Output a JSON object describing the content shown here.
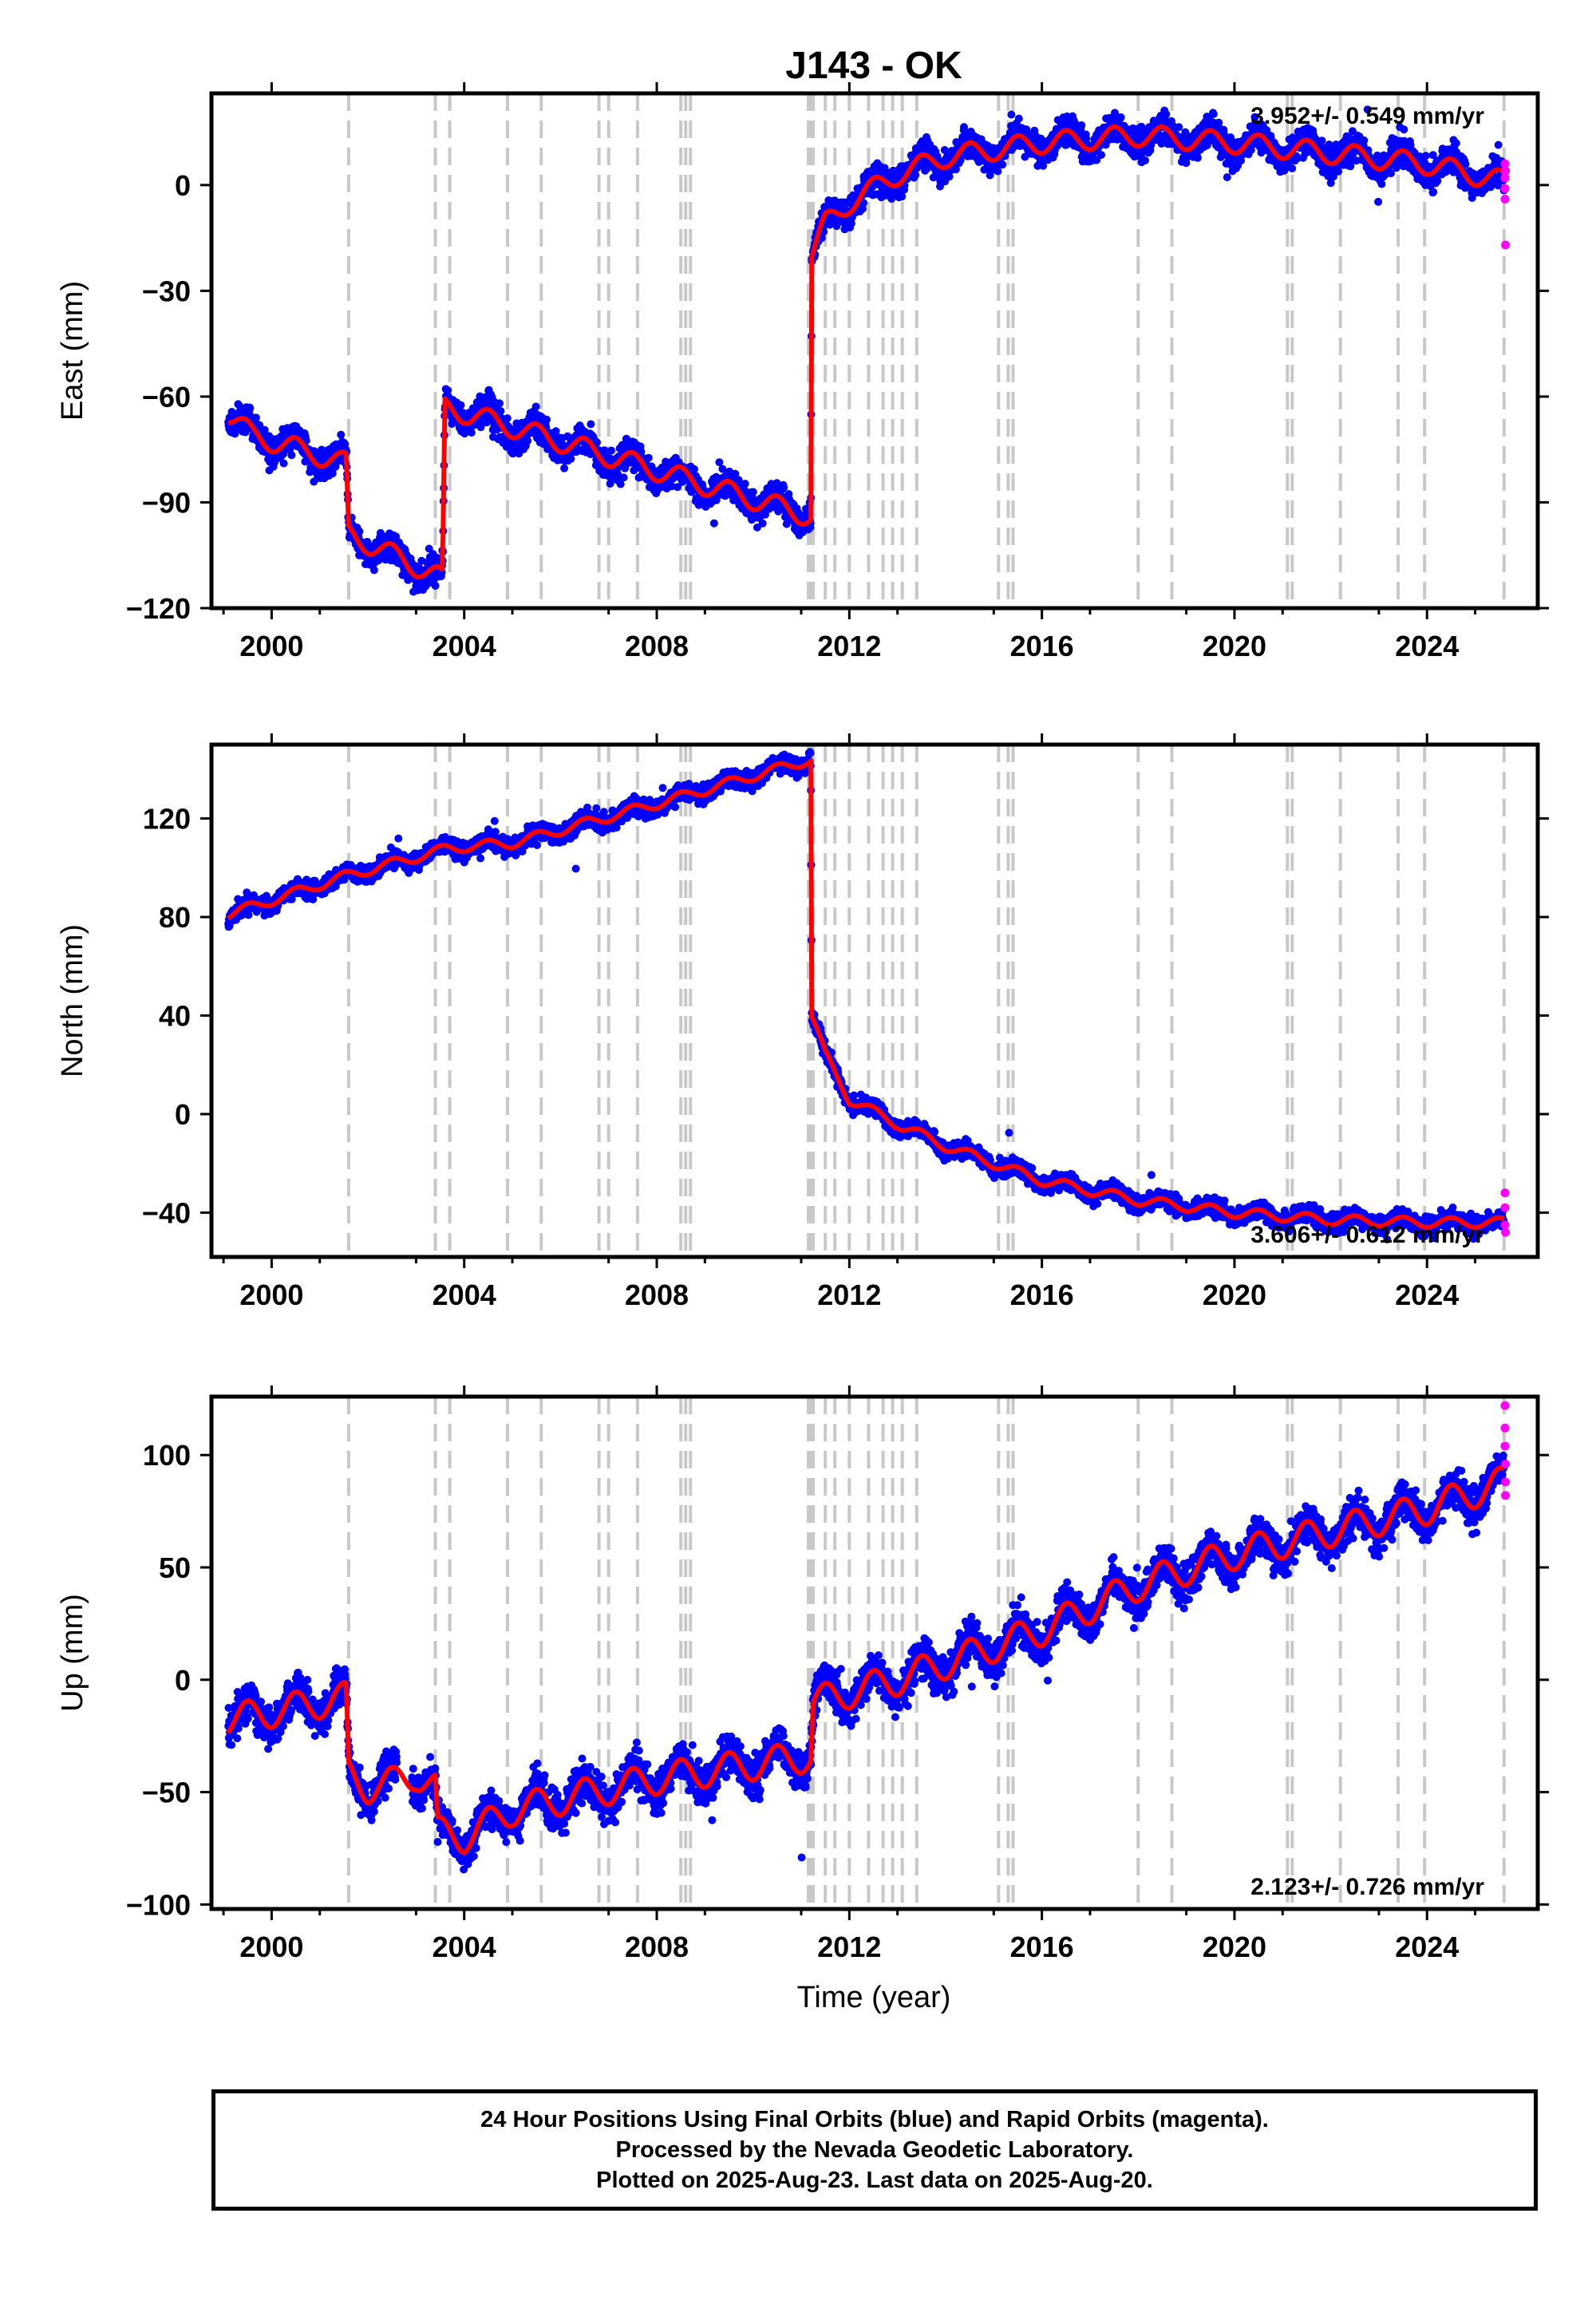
{
  "colors": {
    "final": "#0000ff",
    "rapid": "#ff00ff",
    "model": "#ff0000",
    "steps": "#c8c8c8"
  },
  "chart_data": {
    "type": "scatter",
    "title": "J143 - OK",
    "xlabel": "Time (year)",
    "xlim": [
      1998.75,
      2026.3
    ],
    "xticks": [
      2000,
      2004,
      2008,
      2012,
      2016,
      2020,
      2024
    ],
    "xtick_labels": [
      "2000",
      "2004",
      "2008",
      "2012",
      "2016",
      "2020",
      "2024"
    ],
    "step_lines": [
      2001.6,
      2003.4,
      2003.7,
      2004.9,
      2005.6,
      2006.8,
      2007.0,
      2007.6,
      2008.5,
      2008.6,
      2008.7,
      2011.15,
      2011.2,
      2011.25,
      2011.5,
      2011.7,
      2012.0,
      2012.4,
      2012.7,
      2012.9,
      2013.1,
      2013.4,
      2015.1,
      2015.3,
      2015.4,
      2018.0,
      2018.7,
      2021.1,
      2021.2,
      2022.2,
      2023.4,
      2023.95,
      2025.6
    ],
    "panels": [
      {
        "ylabel": "East (mm)",
        "ylim": [
          -120,
          26
        ],
        "yticks": [
          -120,
          -90,
          -60,
          -30,
          0
        ],
        "ytick_labels": [
          "−120",
          "−90",
          "−60",
          "−30",
          "0"
        ],
        "rate": "3.952+/- 0.549 mm/yr",
        "rate_pos": "top-right",
        "model_knots": [
          [
            1999.1,
            -65
          ],
          [
            1999.6,
            -71
          ],
          [
            2001.55,
            -79
          ],
          [
            2001.6,
            -99
          ],
          [
            2003.45,
            -111
          ],
          [
            2003.55,
            -112
          ],
          [
            2003.6,
            -63
          ],
          [
            2011.2,
            -94
          ],
          [
            2011.22,
            -20
          ],
          [
            2011.5,
            -11
          ],
          [
            2012.0,
            -5
          ],
          [
            2013.0,
            3
          ],
          [
            2014.0,
            8
          ],
          [
            2016.0,
            12
          ],
          [
            2018.0,
            14
          ],
          [
            2020.0,
            12
          ],
          [
            2022.0,
            9
          ],
          [
            2024.0,
            6
          ],
          [
            2025.6,
            1
          ]
        ],
        "seasonal_amp": 3,
        "noise": 3,
        "rapid_points": [
          [
            2025.62,
            6
          ],
          [
            2025.62,
            2
          ],
          [
            2025.62,
            -1
          ],
          [
            2025.62,
            -4
          ],
          [
            2025.63,
            -17
          ],
          [
            2025.63,
            4
          ]
        ]
      },
      {
        "ylabel": "North (mm)",
        "ylim": [
          -58,
          150
        ],
        "yticks": [
          -40,
          0,
          40,
          80,
          120
        ],
        "ytick_labels": [
          "−40",
          "0",
          "40",
          "80",
          "120"
        ],
        "rate": "3.606+/- 0.612 mm/yr",
        "rate_pos": "bottom-right",
        "model_knots": [
          [
            1999.1,
            81
          ],
          [
            2001.6,
            97
          ],
          [
            2003.7,
            108
          ],
          [
            2005.0,
            110
          ],
          [
            2008.0,
            126
          ],
          [
            2011.2,
            144
          ],
          [
            2011.22,
            40
          ],
          [
            2011.5,
            24
          ],
          [
            2012.0,
            6
          ],
          [
            2013.0,
            -4
          ],
          [
            2014.0,
            -13
          ],
          [
            2016.0,
            -27
          ],
          [
            2018.0,
            -35
          ],
          [
            2020.0,
            -40
          ],
          [
            2022.0,
            -43
          ],
          [
            2024.0,
            -44
          ],
          [
            2025.6,
            -44
          ]
        ],
        "seasonal_amp": 2,
        "noise": 2.5,
        "rapid_points": [
          [
            2025.62,
            -32
          ],
          [
            2025.62,
            -38
          ],
          [
            2025.62,
            -45
          ],
          [
            2025.63,
            -48
          ]
        ]
      },
      {
        "ylabel": "Up (mm)",
        "ylim": [
          -102,
          126
        ],
        "yticks": [
          -100,
          -50,
          0,
          50,
          100
        ],
        "ytick_labels": [
          "−100",
          "−50",
          "0",
          "50",
          "100"
        ],
        "rate": "2.123+/- 0.726 mm/yr",
        "rate_pos": "bottom-right",
        "model_knots": [
          [
            1999.1,
            -18
          ],
          [
            2001.55,
            -8
          ],
          [
            2001.6,
            -42
          ],
          [
            2002.0,
            -48
          ],
          [
            2002.5,
            -46
          ],
          [
            2003.0,
            -42
          ],
          [
            2003.4,
            -48
          ],
          [
            2003.45,
            -68
          ],
          [
            2004.0,
            -70
          ],
          [
            2005.0,
            -58
          ],
          [
            2008.0,
            -44
          ],
          [
            2011.2,
            -34
          ],
          [
            2011.25,
            -10
          ],
          [
            2013.0,
            0
          ],
          [
            2016.0,
            22
          ],
          [
            2018.0,
            42
          ],
          [
            2020.0,
            56
          ],
          [
            2022.0,
            66
          ],
          [
            2024.0,
            76
          ],
          [
            2025.6,
            88
          ]
        ],
        "seasonal_amp": 7,
        "noise": 6,
        "rapid_points": [
          [
            2025.62,
            122
          ],
          [
            2025.62,
            112
          ],
          [
            2025.62,
            104
          ],
          [
            2025.63,
            96
          ],
          [
            2025.63,
            88
          ],
          [
            2025.63,
            82
          ]
        ]
      }
    ]
  },
  "footer": {
    "line1": "24 Hour Positions Using Final Orbits (blue) and Rapid Orbits (magenta).",
    "line2": "Processed by the Nevada Geodetic Laboratory.",
    "line3": "Plotted on 2025-Aug-23. Last data on 2025-Aug-20."
  }
}
